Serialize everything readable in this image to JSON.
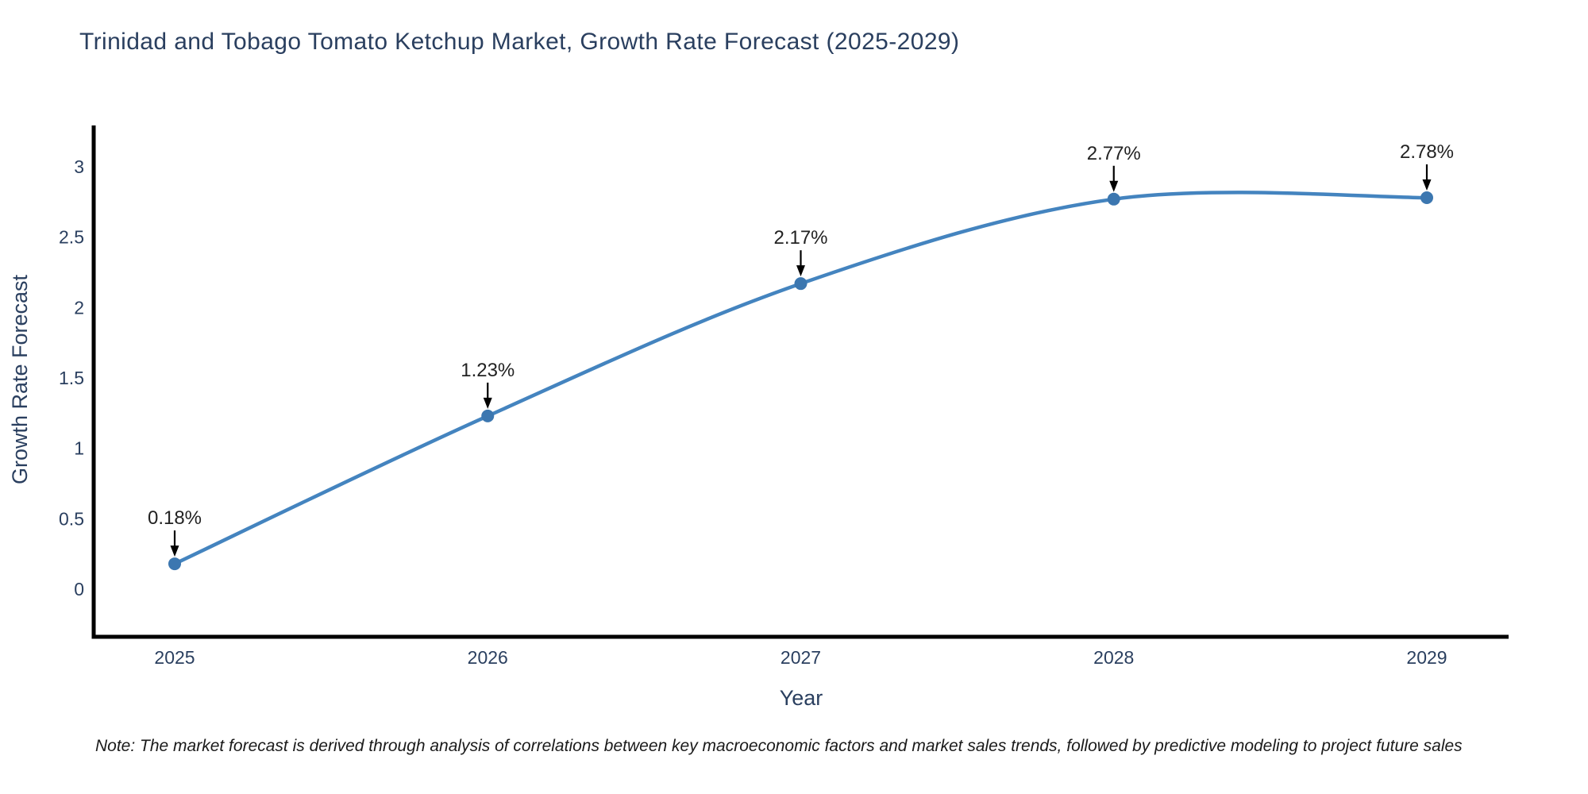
{
  "title": "Trinidad and Tobago Tomato Ketchup Market, Growth Rate Forecast (2025-2029)",
  "note": "Note: The market forecast is derived through analysis of correlations between key macroeconomic factors and market sales trends, followed by predictive modeling to project future sales",
  "chart_data": {
    "type": "line",
    "line_shape": "spline",
    "x": [
      2025,
      2026,
      2027,
      2028,
      2029
    ],
    "x_tick_labels": [
      "2025",
      "2026",
      "2027",
      "2028",
      "2029"
    ],
    "values": [
      0.18,
      1.23,
      2.17,
      2.77,
      2.78
    ],
    "point_labels": [
      "0.18%",
      "1.23%",
      "2.17%",
      "2.77%",
      "2.78%"
    ],
    "title": "Trinidad and Tobago Tomato Ketchup Market, Growth Rate Forecast (2025-2029)",
    "xlabel": "Year",
    "ylabel": "Growth Rate Forecast",
    "y_ticks": [
      0,
      0.5,
      1,
      1.5,
      2,
      2.5,
      3
    ],
    "ylim": [
      -0.34,
      3.28
    ],
    "xlim": [
      2024.74,
      2029.26
    ],
    "grid": false,
    "legend_position": "none",
    "annotations_have_arrows": true,
    "colors": {
      "line": "#4484bf",
      "marker": "#3c77b0",
      "axis_line": "#000000",
      "arrow": "#000000",
      "title_text": "#2a3f5f",
      "tick_text": "#2a3f5f",
      "annotation_text": "#222222",
      "note_text": "#1a1a1a",
      "background": "#ffffff"
    }
  }
}
